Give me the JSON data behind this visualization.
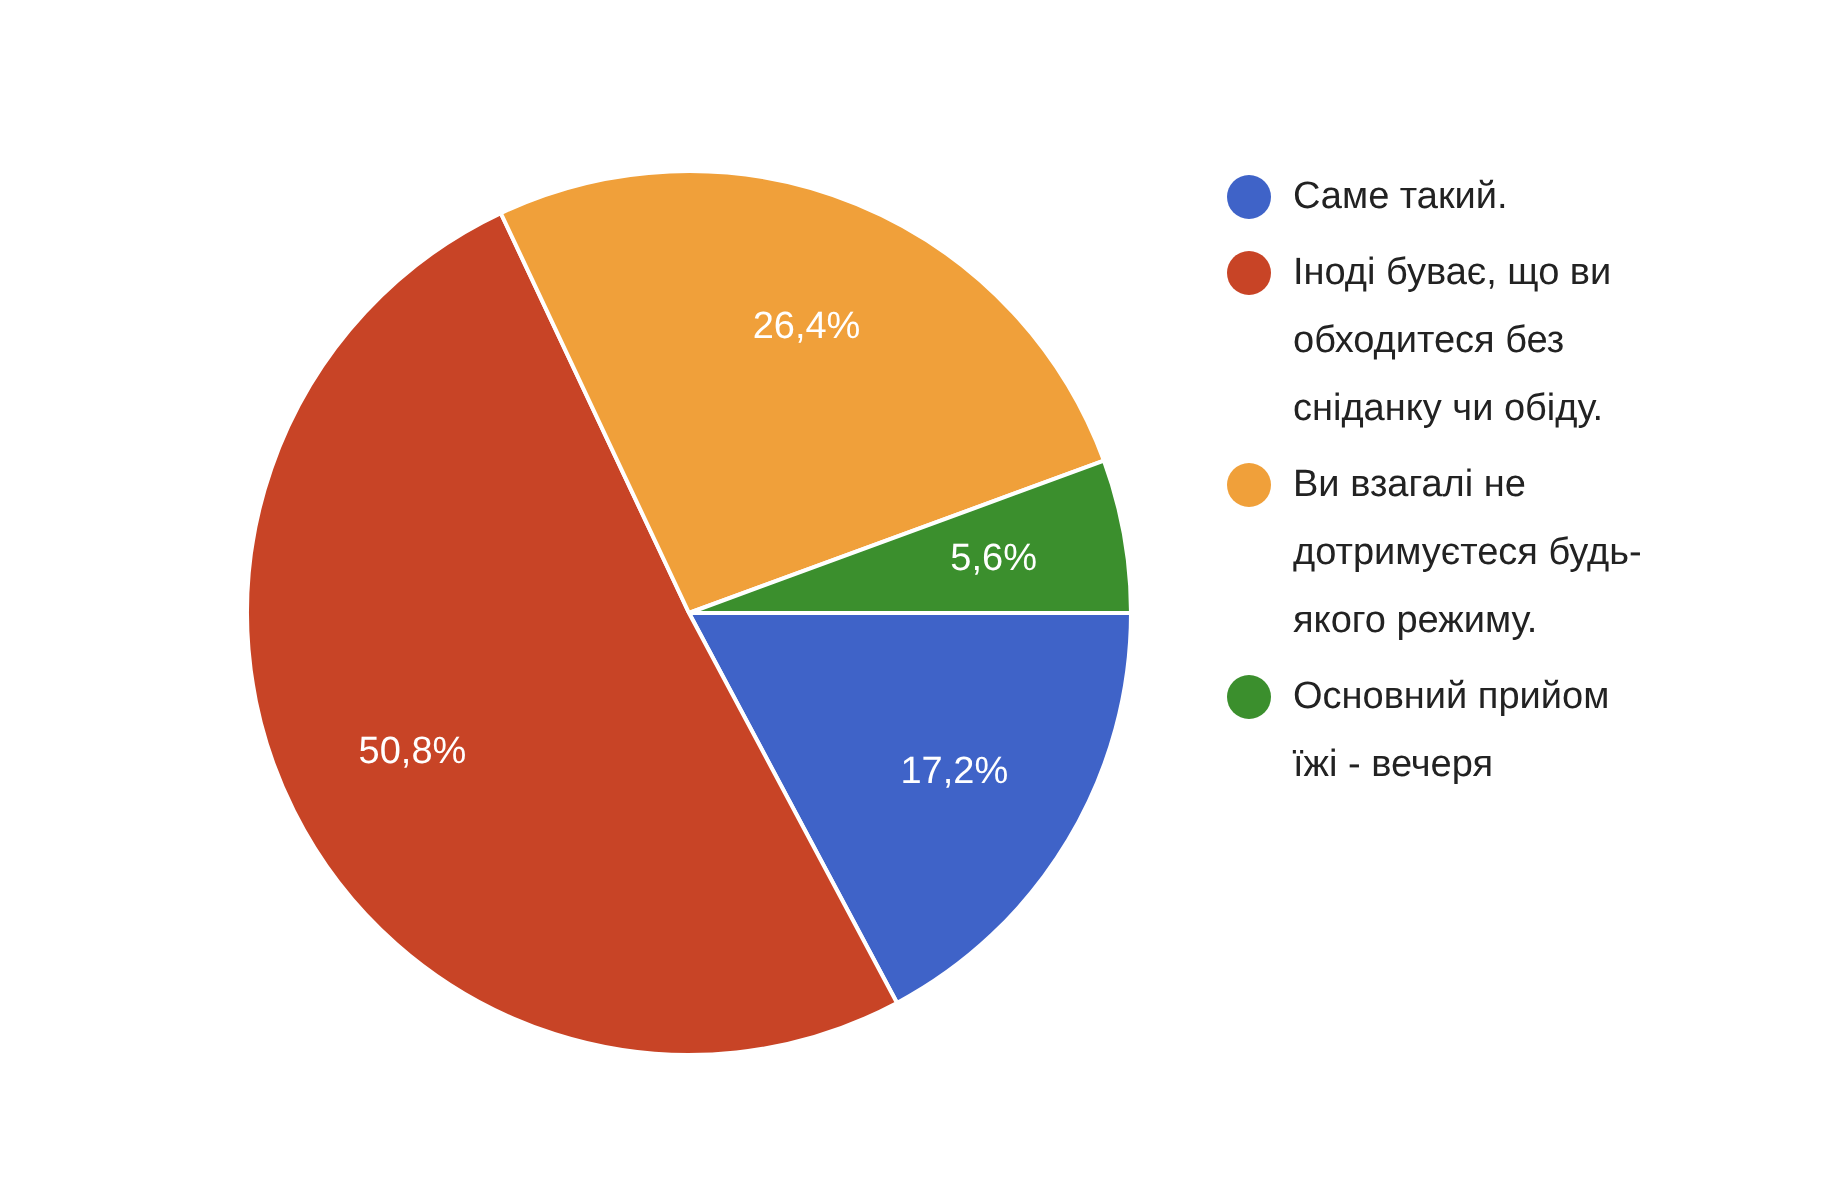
{
  "chart_data": {
    "type": "pie",
    "categories": [
      "Саме такий.",
      "Іноді буває, що ви обходитеся без сніданку чи обіду.",
      "Ви взагалі не дотримуєтеся будь-якого режиму.",
      "Основний прийом їжі - вечеря"
    ],
    "values": [
      17.2,
      50.8,
      26.4,
      5.6
    ],
    "colors": [
      "#3f63c8",
      "#c84426",
      "#f0a03a",
      "#3b8f2d"
    ],
    "value_labels": [
      "17,2%",
      "50,8%",
      "26,4%",
      "5,6%"
    ],
    "legend": "right"
  }
}
